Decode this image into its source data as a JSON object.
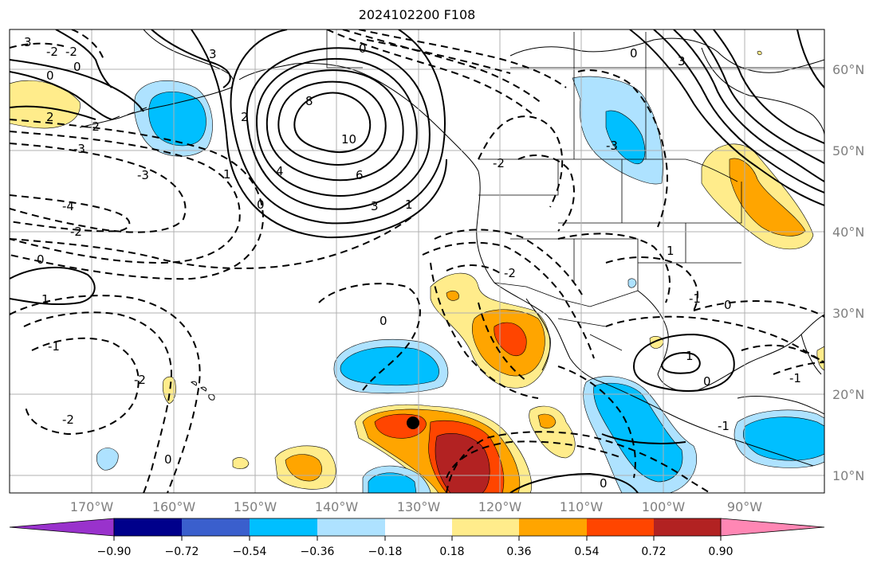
{
  "title": "2024102200 F108",
  "longitude_labels": [
    "170°W",
    "160°W",
    "150°W",
    "140°W",
    "130°W",
    "120°W",
    "110°W",
    "100°W",
    "90°W"
  ],
  "latitude_labels": [
    "60°N",
    "50°N",
    "40°N",
    "30°N",
    "20°N",
    "10°N"
  ],
  "colorbar": {
    "tick_labels": [
      "−0.90",
      "−0.72",
      "−0.54",
      "−0.36",
      "−0.18",
      "0.18",
      "0.36",
      "0.54",
      "0.72",
      "0.90"
    ],
    "colors": [
      "#9932cc",
      "#00008b",
      "#3a5fcd",
      "#00bfff",
      "#aee2ff",
      "#ffffff",
      "#ffec8b",
      "#ffa500",
      "#ff4500",
      "#b22222",
      "#ff87b4"
    ]
  },
  "contour_labels": [
    {
      "text": "3"
    },
    {
      "text": "-2"
    },
    {
      "text": "-2"
    },
    {
      "text": "0"
    },
    {
      "text": "0"
    },
    {
      "text": "2"
    },
    {
      "text": "-2"
    },
    {
      "text": "-3"
    },
    {
      "text": "-3"
    },
    {
      "text": "-4"
    },
    {
      "text": "-2"
    },
    {
      "text": "0"
    },
    {
      "text": "1"
    },
    {
      "text": "-1"
    },
    {
      "text": "-2"
    },
    {
      "text": "-2"
    },
    {
      "text": "0"
    },
    {
      "text": "3"
    },
    {
      "text": "8"
    },
    {
      "text": "10"
    },
    {
      "text": "6"
    },
    {
      "text": "4"
    },
    {
      "text": "2"
    },
    {
      "text": "0"
    },
    {
      "text": "3"
    },
    {
      "text": "1"
    },
    {
      "text": "1"
    },
    {
      "text": "0"
    },
    {
      "text": "-2"
    },
    {
      "text": "-3"
    },
    {
      "text": "0"
    },
    {
      "text": "3"
    },
    {
      "text": "-2"
    },
    {
      "text": "1"
    },
    {
      "text": "-1"
    },
    {
      "text": "1"
    },
    {
      "text": "0"
    },
    {
      "text": "-1"
    },
    {
      "text": "0"
    },
    {
      "text": "0"
    },
    {
      "text": "0"
    },
    {
      "text": "-1"
    }
  ]
}
